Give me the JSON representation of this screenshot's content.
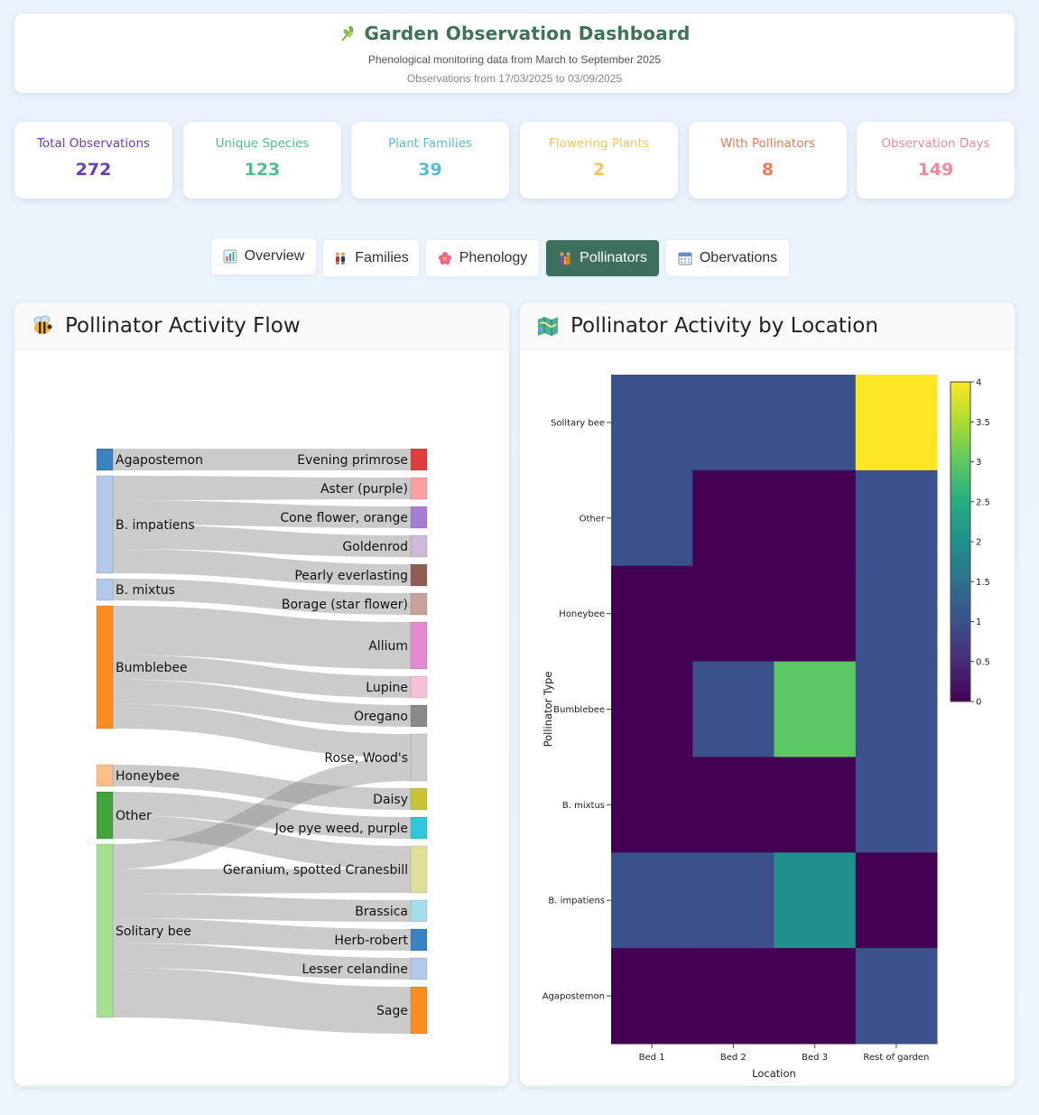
{
  "header": {
    "title": "Garden Observation Dashboard",
    "subtitle": "Phenological monitoring data from March to September 2025",
    "date_range": "Observations from 17/03/2025 to 03/09/2025"
  },
  "stats": [
    {
      "label": "Total Observations",
      "value": "272",
      "color": "#6a3fb5"
    },
    {
      "label": "Unique Species",
      "value": "123",
      "color": "#4fc08d"
    },
    {
      "label": "Plant Families",
      "value": "39",
      "color": "#5bbccf"
    },
    {
      "label": "Flowering Plants",
      "value": "2",
      "color": "#f7c45a"
    },
    {
      "label": "With Pollinators",
      "value": "8",
      "color": "#ef7a55"
    },
    {
      "label": "Observation Days",
      "value": "149",
      "color": "#ef8b97"
    }
  ],
  "tabs": [
    {
      "label": "Overview",
      "icon": "bar-chart-icon"
    },
    {
      "label": "Families",
      "icon": "people-icon"
    },
    {
      "label": "Phenology",
      "icon": "flower-icon"
    },
    {
      "label": "Pollinators",
      "icon": "family-icon",
      "active": true
    },
    {
      "label": "Obervations",
      "icon": "calendar-icon"
    }
  ],
  "panels": {
    "sankey_title": "Pollinator Activity Flow",
    "sankey_icon": "bee-icon",
    "heatmap_title": "Pollinator Activity by Location",
    "heatmap_icon": "map-icon"
  },
  "chart_data": [
    {
      "type": "sankey",
      "sources": [
        {
          "name": "Agapostemon",
          "color": "#3a83c0"
        },
        {
          "name": "B. impatiens",
          "color": "#b3c8ea"
        },
        {
          "name": "B. mixtus",
          "color": "#b3c8ea"
        },
        {
          "name": "Bumblebee",
          "color": "#fb8c1e"
        },
        {
          "name": "Honeybee",
          "color": "#ffbe85"
        },
        {
          "name": "Other",
          "color": "#43a43b"
        },
        {
          "name": "Solitary bee",
          "color": "#a4df92"
        }
      ],
      "targets": [
        {
          "name": "Evening primrose",
          "color": "#de3d3d"
        },
        {
          "name": "Aster (purple)",
          "color": "#fca0a0"
        },
        {
          "name": "Cone flower, orange",
          "color": "#a47fcf"
        },
        {
          "name": "Goldenrod",
          "color": "#ccb9dc"
        },
        {
          "name": "Pearly everlasting",
          "color": "#8f5d54"
        },
        {
          "name": "Borage (star flower)",
          "color": "#c9a19b"
        },
        {
          "name": "Allium",
          "color": "#e48ad0"
        },
        {
          "name": "Lupine",
          "color": "#f8bfd8"
        },
        {
          "name": "Oregano",
          "color": "#8a8a8a"
        },
        {
          "name": "Rose, Wood's",
          "color": "#cccccc"
        },
        {
          "name": "Daisy",
          "color": "#c8c437"
        },
        {
          "name": "Joe pye weed, purple",
          "color": "#2ec8d8"
        },
        {
          "name": "Geranium, spotted Cranesbill",
          "color": "#dfe098"
        },
        {
          "name": "Brassica",
          "color": "#a6dfea"
        },
        {
          "name": "Herb-robert",
          "color": "#3a83c0"
        },
        {
          "name": "Lesser celandine",
          "color": "#b3c8ea"
        },
        {
          "name": "Sage",
          "color": "#fb8c1e"
        }
      ],
      "links": [
        {
          "source": "Agapostemon",
          "target": "Evening primrose",
          "value": 1
        },
        {
          "source": "B. impatiens",
          "target": "Aster (purple)",
          "value": 1
        },
        {
          "source": "B. impatiens",
          "target": "Cone flower, orange",
          "value": 1
        },
        {
          "source": "B. impatiens",
          "target": "Goldenrod",
          "value": 1
        },
        {
          "source": "B. impatiens",
          "target": "Pearly everlasting",
          "value": 1
        },
        {
          "source": "B. mixtus",
          "target": "Borage (star flower)",
          "value": 1
        },
        {
          "source": "Bumblebee",
          "target": "Allium",
          "value": 2
        },
        {
          "source": "Bumblebee",
          "target": "Lupine",
          "value": 1
        },
        {
          "source": "Bumblebee",
          "target": "Oregano",
          "value": 1
        },
        {
          "source": "Bumblebee",
          "target": "Rose, Wood's",
          "value": 1
        },
        {
          "source": "Honeybee",
          "target": "Daisy",
          "value": 1
        },
        {
          "source": "Other",
          "target": "Joe pye weed, purple",
          "value": 1
        },
        {
          "source": "Other",
          "target": "Geranium, spotted Cranesbill",
          "value": 1
        },
        {
          "source": "Solitary bee",
          "target": "Rose, Wood's",
          "value": 1
        },
        {
          "source": "Solitary bee",
          "target": "Geranium, spotted Cranesbill",
          "value": 1
        },
        {
          "source": "Solitary bee",
          "target": "Brassica",
          "value": 1
        },
        {
          "source": "Solitary bee",
          "target": "Herb-robert",
          "value": 1
        },
        {
          "source": "Solitary bee",
          "target": "Lesser celandine",
          "value": 1
        },
        {
          "source": "Solitary bee",
          "target": "Sage",
          "value": 2
        }
      ]
    },
    {
      "type": "heatmap",
      "x": [
        "Bed 1",
        "Bed 2",
        "Bed 3",
        "Rest of garden"
      ],
      "y": [
        "Solitary bee",
        "Other",
        "Honeybee",
        "Bumblebee",
        "B. mixtus",
        "B. impatiens",
        "Agapostemon"
      ],
      "z": [
        [
          1,
          1,
          1,
          4
        ],
        [
          1,
          0,
          0,
          1
        ],
        [
          0,
          0,
          0,
          1
        ],
        [
          0,
          1,
          3,
          1
        ],
        [
          0,
          0,
          0,
          1
        ],
        [
          1,
          1,
          2,
          0
        ],
        [
          0,
          0,
          0,
          1
        ]
      ],
      "xlabel": "Location",
      "ylabel": "Pollinator Type",
      "zlim": [
        0,
        4
      ],
      "colorbar_ticks": [
        "0",
        "0.5",
        "1",
        "1.5",
        "2",
        "2.5",
        "3",
        "3.5",
        "4"
      ],
      "colorscale": "viridis"
    }
  ]
}
